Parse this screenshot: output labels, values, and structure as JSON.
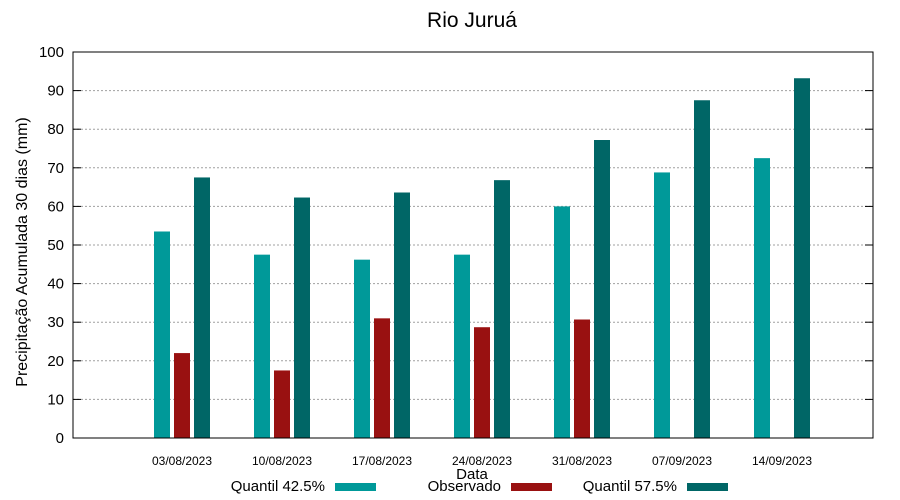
{
  "chart_data": {
    "type": "bar",
    "title": "Rio Juruá",
    "xlabel": "Data",
    "ylabel": "Precipitação Acumulada 30 dias (mm)",
    "ylim": [
      0,
      100
    ],
    "yticks": [
      0,
      10,
      20,
      30,
      40,
      50,
      60,
      70,
      80,
      90,
      100
    ],
    "grid": true,
    "legend_position": "bottom",
    "categories": [
      "03/08/2023",
      "10/08/2023",
      "17/08/2023",
      "24/08/2023",
      "31/08/2023",
      "07/09/2023",
      "14/09/2023"
    ],
    "series": [
      {
        "name": "Quantil 42.5%",
        "color": "#009999",
        "values": [
          53.5,
          47.5,
          46.2,
          47.5,
          60.0,
          68.8,
          72.5
        ]
      },
      {
        "name": "Observado",
        "color": "#991111",
        "values": [
          22.0,
          17.5,
          31.0,
          28.7,
          30.7,
          null,
          null
        ]
      },
      {
        "name": "Quantil 57.5%",
        "color": "#006666",
        "values": [
          67.5,
          62.3,
          63.6,
          66.8,
          77.2,
          87.5,
          93.2
        ]
      }
    ]
  }
}
